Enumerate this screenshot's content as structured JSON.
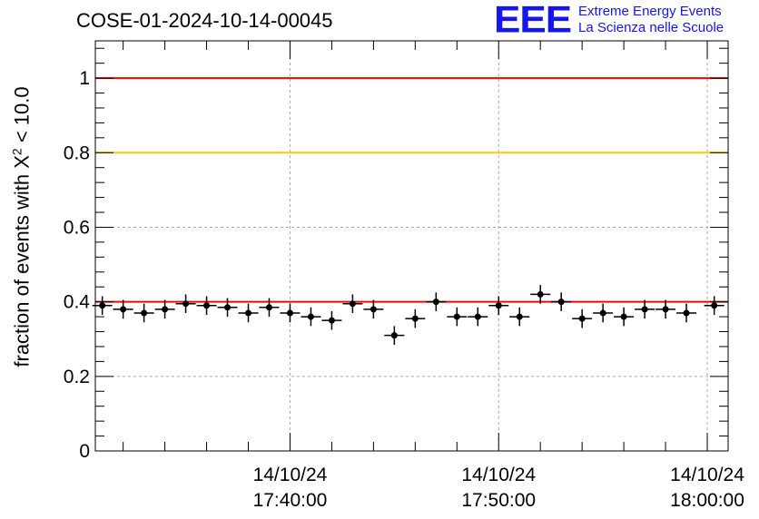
{
  "header": {
    "run_title": "COSE-01-2024-10-14-00045",
    "logo_mark": "EEE",
    "logo_line1": "Extreme Energy Events",
    "logo_line2": "La Scienza nelle Scuole"
  },
  "chart_data": {
    "type": "scatter",
    "ylabel_text": "fraction of events with X",
    "ylabel_sup": "2",
    "ylabel_suffix": " < 10.0",
    "ylim": [
      0,
      1.1
    ],
    "yticks": [
      0,
      0.2,
      0.4,
      0.6,
      0.8,
      1
    ],
    "ytick_labels": [
      "0",
      "0.2",
      "0.4",
      "0.6",
      "0.8",
      "1"
    ],
    "xlim": [
      "17:30:40",
      "18:01:00"
    ],
    "xticks": [
      {
        "time": "17:40:00",
        "date": "14/10/24",
        "clock": "17:40:00"
      },
      {
        "time": "17:50:00",
        "date": "14/10/24",
        "clock": "17:50:00"
      },
      {
        "time": "18:00:00",
        "date": "14/10/24",
        "clock": "18:00:00"
      }
    ],
    "grid": true,
    "reference_lines": [
      {
        "y": 1.0,
        "color": "#ff0000"
      },
      {
        "y": 0.8,
        "color": "#ffcc00"
      },
      {
        "y": 0.4,
        "color": "#ff0000"
      }
    ],
    "points": [
      {
        "x": "17:31:00",
        "y": 0.39,
        "err": 0.025
      },
      {
        "x": "17:32:00",
        "y": 0.38,
        "err": 0.025
      },
      {
        "x": "17:33:00",
        "y": 0.37,
        "err": 0.025
      },
      {
        "x": "17:34:00",
        "y": 0.38,
        "err": 0.025
      },
      {
        "x": "17:35:00",
        "y": 0.395,
        "err": 0.025
      },
      {
        "x": "17:36:00",
        "y": 0.39,
        "err": 0.025
      },
      {
        "x": "17:37:00",
        "y": 0.385,
        "err": 0.025
      },
      {
        "x": "17:38:00",
        "y": 0.37,
        "err": 0.025
      },
      {
        "x": "17:39:00",
        "y": 0.385,
        "err": 0.025
      },
      {
        "x": "17:40:00",
        "y": 0.37,
        "err": 0.025
      },
      {
        "x": "17:41:00",
        "y": 0.36,
        "err": 0.025
      },
      {
        "x": "17:42:00",
        "y": 0.35,
        "err": 0.025
      },
      {
        "x": "17:43:00",
        "y": 0.395,
        "err": 0.025
      },
      {
        "x": "17:44:00",
        "y": 0.38,
        "err": 0.025
      },
      {
        "x": "17:45:00",
        "y": 0.31,
        "err": 0.025
      },
      {
        "x": "17:46:00",
        "y": 0.355,
        "err": 0.025
      },
      {
        "x": "17:47:00",
        "y": 0.4,
        "err": 0.025
      },
      {
        "x": "17:48:00",
        "y": 0.36,
        "err": 0.025
      },
      {
        "x": "17:49:00",
        "y": 0.36,
        "err": 0.025
      },
      {
        "x": "17:50:00",
        "y": 0.39,
        "err": 0.025
      },
      {
        "x": "17:51:00",
        "y": 0.36,
        "err": 0.025
      },
      {
        "x": "17:52:00",
        "y": 0.42,
        "err": 0.025
      },
      {
        "x": "17:53:00",
        "y": 0.4,
        "err": 0.025
      },
      {
        "x": "17:54:00",
        "y": 0.355,
        "err": 0.025
      },
      {
        "x": "17:55:00",
        "y": 0.37,
        "err": 0.025
      },
      {
        "x": "17:56:00",
        "y": 0.36,
        "err": 0.025
      },
      {
        "x": "17:57:00",
        "y": 0.38,
        "err": 0.025
      },
      {
        "x": "17:58:00",
        "y": 0.38,
        "err": 0.025
      },
      {
        "x": "17:59:00",
        "y": 0.37,
        "err": 0.025
      },
      {
        "x": "18:00:20",
        "y": 0.39,
        "err": 0.025
      }
    ]
  }
}
